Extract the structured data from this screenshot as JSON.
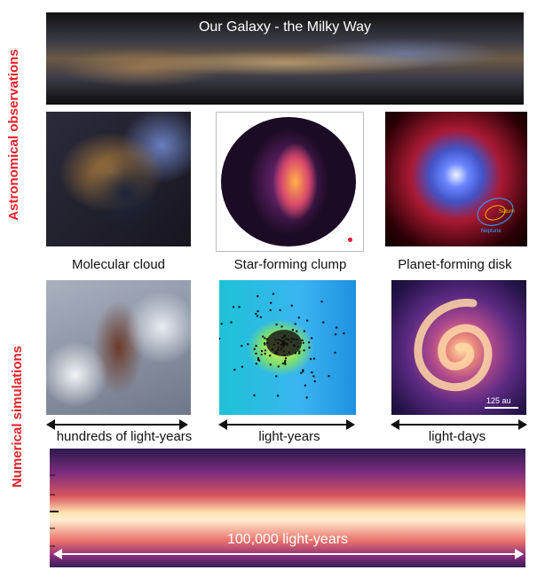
{
  "side_labels": {
    "observations": "Astronomical observations",
    "simulations": "Numerical simulations"
  },
  "top_banner": {
    "title": "Our Galaxy - the Milky Way"
  },
  "panels": {
    "molecular_cloud": {
      "label": "Molecular cloud",
      "scale": "hundreds of light-years"
    },
    "star_forming_clump": {
      "label": "Star-forming clump",
      "scale": "light-years"
    },
    "planet_forming_disk": {
      "label": "Planet-forming disk",
      "scale": "light-days",
      "orbit_labels": {
        "saturn": "Saturn",
        "neptune": "Neptune"
      },
      "scale_bar": "125 au"
    }
  },
  "bottom_simulation": {
    "scale": "100,000 light-years"
  },
  "colors": {
    "side_label": "#e8202a"
  }
}
